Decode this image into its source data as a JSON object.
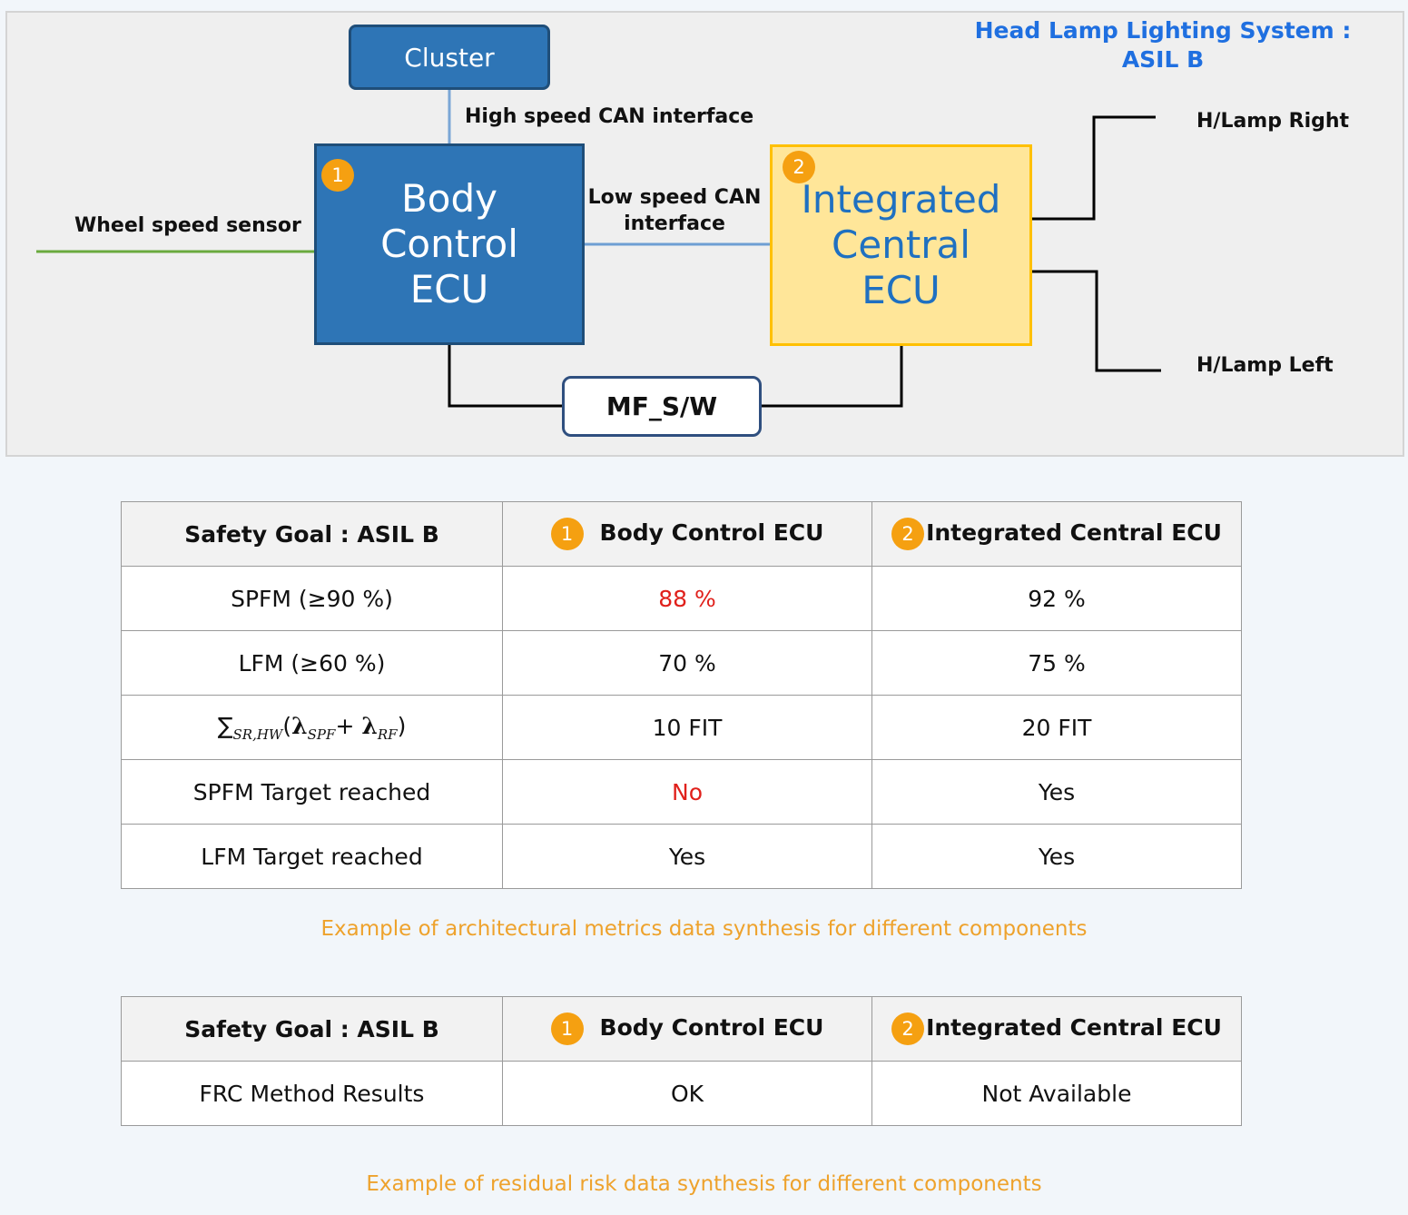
{
  "diagram": {
    "title": "Head Lamp Lighting System : ASIL B",
    "nodes": {
      "cluster": "Cluster",
      "body_ecu": {
        "badge": "1",
        "label": "Body Control ECU"
      },
      "central_ecu": {
        "badge": "2",
        "label": "Integrated Central ECU"
      },
      "mf_sw": "MF_S/W"
    },
    "edge_labels": {
      "high_speed": "High speed CAN interface",
      "low_speed": "Low speed CAN interface",
      "wheel_sensor": "Wheel speed sensor",
      "lamp_right": "H/Lamp Right",
      "lamp_left": "H/Lamp Left"
    }
  },
  "tables": [
    {
      "header": [
        {
          "text": "Safety Goal : ASIL B"
        },
        {
          "badge": "1",
          "text": "Body Control ECU"
        },
        {
          "badge": "2",
          "text": "Integrated Central ECU"
        }
      ],
      "rows": [
        [
          "SPFM (≥90 %)",
          "88 %",
          "92 %"
        ],
        [
          "LFM (≥60 %)",
          "70 %",
          "75 %"
        ],
        [
          {
            "sum": "∑",
            "sum_sub": "SR,HW",
            "open": "(",
            "lambda1": "λ",
            "sub1": "SPF",
            "plus": "+ ",
            "lambda2": "λ",
            "sub2": "RF",
            "close": ")"
          },
          "10 FIT",
          "20 FIT"
        ],
        [
          "SPFM Target reached",
          "No",
          "Yes"
        ],
        [
          "LFM Target reached",
          "Yes",
          "Yes"
        ]
      ],
      "caption": "Example of architectural metrics data synthesis for different components"
    },
    {
      "header": [
        {
          "text": "Safety Goal : ASIL B"
        },
        {
          "badge": "1",
          "text": "Body Control ECU"
        },
        {
          "badge": "2",
          "text": "Integrated Central ECU"
        }
      ],
      "rows": [
        [
          "FRC Method Results",
          "OK",
          "Not Available"
        ]
      ],
      "caption": "Example of residual risk data synthesis for different components"
    }
  ]
}
